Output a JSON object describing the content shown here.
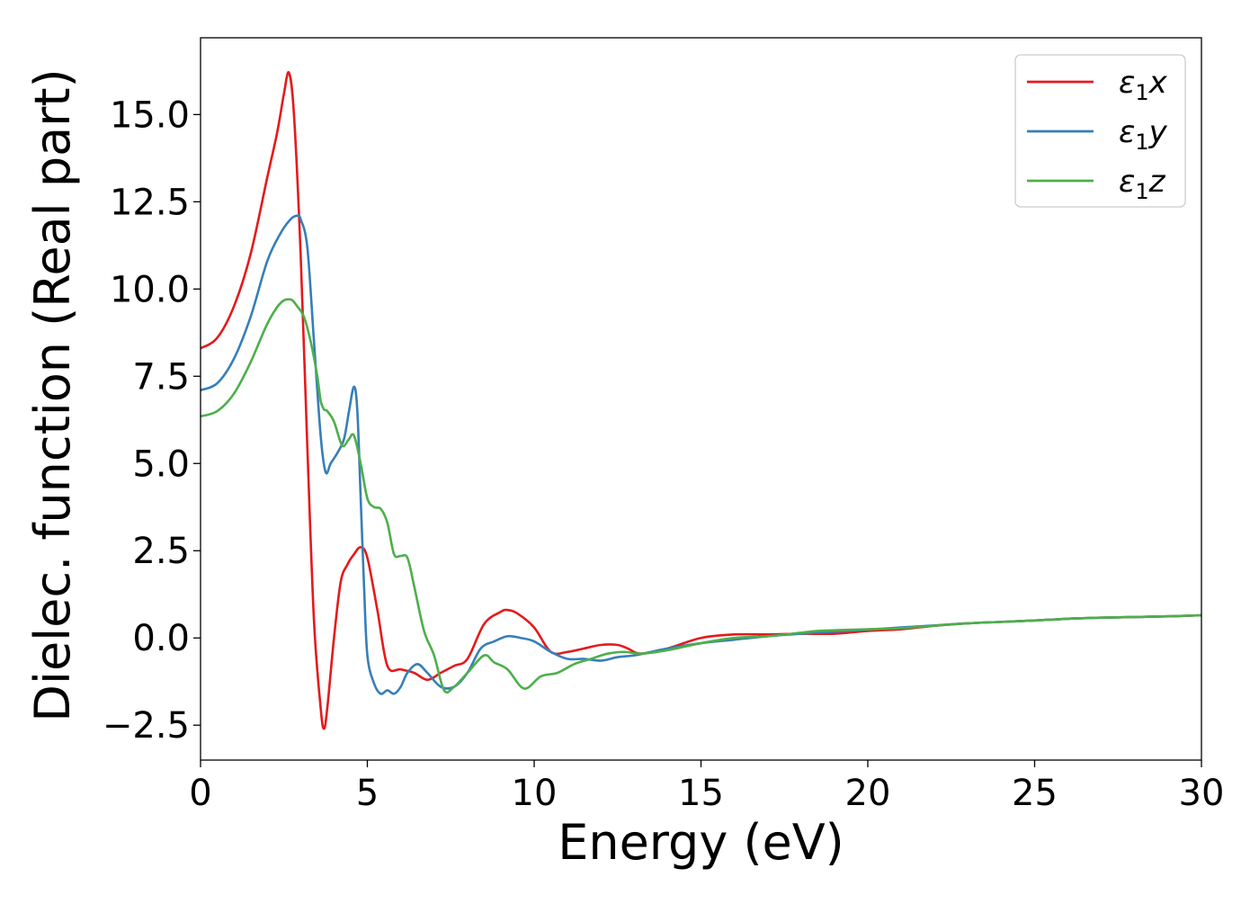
{
  "chart_data": {
    "type": "line",
    "title": "",
    "xlabel": "Energy (eV)",
    "ylabel": "Dielec. function (Real part)",
    "xlim": [
      0,
      30
    ],
    "ylim": [
      -3.5,
      17.2
    ],
    "x_ticks": [
      0,
      5,
      10,
      15,
      20,
      25,
      30
    ],
    "x_tick_labels": [
      "0",
      "5",
      "10",
      "15",
      "20",
      "25",
      "30"
    ],
    "y_ticks": [
      -2.5,
      0.0,
      2.5,
      5.0,
      7.5,
      10.0,
      12.5,
      15.0
    ],
    "y_tick_labels": [
      "−2.5",
      "0.0",
      "2.5",
      "5.0",
      "7.5",
      "10.0",
      "12.5",
      "15.0"
    ],
    "grid": false,
    "legend_position": "top-right",
    "series": [
      {
        "name": "ε1x",
        "legend_main": "ε",
        "legend_sub": "1",
        "legend_tail": "x",
        "color": "#e41a1c",
        "x": [
          0,
          0.5,
          1.0,
          1.5,
          2.0,
          2.3,
          2.5,
          2.65,
          2.8,
          3.0,
          3.2,
          3.4,
          3.6,
          3.7,
          3.8,
          4.0,
          4.2,
          4.4,
          4.6,
          4.8,
          5.0,
          5.3,
          5.6,
          6.0,
          6.4,
          6.8,
          7.2,
          7.6,
          8.0,
          8.5,
          9.0,
          9.2,
          9.5,
          10.0,
          10.5,
          11.0,
          11.5,
          12.0,
          12.5,
          12.8,
          13.2,
          14.0,
          15.0,
          16.0,
          17.0,
          18.0,
          19.0,
          20.0,
          21.0,
          22.0,
          23.0,
          24.0,
          25.0,
          26.0,
          27.0,
          28.0,
          29.0,
          30.0
        ],
        "y": [
          8.3,
          8.6,
          9.5,
          11.0,
          13.2,
          14.5,
          15.6,
          16.2,
          15.0,
          11.0,
          5.5,
          0.5,
          -2.0,
          -2.6,
          -2.0,
          0.0,
          1.6,
          2.1,
          2.4,
          2.6,
          2.3,
          0.8,
          -0.8,
          -0.9,
          -1.0,
          -1.2,
          -1.0,
          -0.8,
          -0.6,
          0.4,
          0.75,
          0.8,
          0.7,
          0.3,
          -0.4,
          -0.4,
          -0.3,
          -0.2,
          -0.2,
          -0.3,
          -0.45,
          -0.3,
          0.0,
          0.1,
          0.1,
          0.12,
          0.12,
          0.2,
          0.25,
          0.35,
          0.42,
          0.46,
          0.5,
          0.55,
          0.58,
          0.6,
          0.62,
          0.65
        ]
      },
      {
        "name": "ε1y",
        "legend_main": "ε",
        "legend_sub": "1",
        "legend_tail": "y",
        "color": "#377eb8",
        "x": [
          0,
          0.5,
          1.0,
          1.5,
          2.0,
          2.4,
          2.7,
          2.9,
          3.0,
          3.2,
          3.4,
          3.6,
          3.75,
          3.9,
          4.1,
          4.3,
          4.45,
          4.6,
          4.7,
          4.8,
          4.9,
          5.0,
          5.2,
          5.4,
          5.6,
          5.8,
          6.0,
          6.2,
          6.5,
          6.8,
          7.2,
          7.6,
          8.0,
          8.4,
          8.8,
          9.2,
          9.6,
          10.0,
          10.5,
          11.0,
          11.5,
          12.0,
          12.5,
          13.0,
          13.5,
          14.0,
          15.0,
          16.0,
          17.0,
          18.0,
          19.0,
          20.0,
          21.0,
          22.0,
          23.0,
          24.0,
          25.0,
          26.0,
          27.0,
          28.0,
          29.0,
          30.0
        ],
        "y": [
          7.1,
          7.3,
          8.0,
          9.2,
          10.8,
          11.6,
          12.0,
          12.1,
          12.0,
          11.2,
          8.5,
          5.8,
          4.75,
          5.0,
          5.3,
          5.7,
          6.5,
          7.2,
          6.5,
          4.0,
          1.5,
          -0.5,
          -1.3,
          -1.6,
          -1.5,
          -1.6,
          -1.4,
          -1.0,
          -0.75,
          -1.0,
          -1.4,
          -1.4,
          -1.0,
          -0.3,
          -0.1,
          0.05,
          0.0,
          -0.1,
          -0.4,
          -0.6,
          -0.6,
          -0.65,
          -0.55,
          -0.5,
          -0.4,
          -0.3,
          -0.15,
          -0.05,
          0.05,
          0.12,
          0.18,
          0.24,
          0.3,
          0.36,
          0.42,
          0.46,
          0.5,
          0.55,
          0.58,
          0.6,
          0.62,
          0.65
        ]
      },
      {
        "name": "ε1z",
        "legend_main": "ε",
        "legend_sub": "1",
        "legend_tail": "z",
        "color": "#4daf4a",
        "x": [
          0,
          0.5,
          1.0,
          1.5,
          2.0,
          2.4,
          2.7,
          2.9,
          3.1,
          3.3,
          3.5,
          3.6,
          3.7,
          3.8,
          4.0,
          4.2,
          4.3,
          4.45,
          4.6,
          4.8,
          5.0,
          5.2,
          5.4,
          5.6,
          5.8,
          6.0,
          6.2,
          6.4,
          6.7,
          7.0,
          7.3,
          7.6,
          8.0,
          8.5,
          8.8,
          9.2,
          9.7,
          10.2,
          10.7,
          11.2,
          11.7,
          12.2,
          12.7,
          13.2,
          14.0,
          15.0,
          16.0,
          17.0,
          18.0,
          18.5,
          19.0,
          20.0,
          21.0,
          22.0,
          23.0,
          24.0,
          25.0,
          26.0,
          27.0,
          28.0,
          29.0,
          30.0
        ],
        "y": [
          6.35,
          6.5,
          7.0,
          7.9,
          9.0,
          9.6,
          9.7,
          9.5,
          9.2,
          8.5,
          7.5,
          6.8,
          6.55,
          6.5,
          6.2,
          5.6,
          5.5,
          5.7,
          5.8,
          5.0,
          4.0,
          3.75,
          3.7,
          3.3,
          2.4,
          2.35,
          2.3,
          1.5,
          0.2,
          -0.5,
          -1.5,
          -1.4,
          -1.0,
          -0.5,
          -0.7,
          -0.9,
          -1.45,
          -1.1,
          -1.0,
          -0.75,
          -0.6,
          -0.45,
          -0.4,
          -0.45,
          -0.35,
          -0.15,
          0.0,
          0.05,
          0.15,
          0.2,
          0.22,
          0.25,
          0.28,
          0.35,
          0.42,
          0.46,
          0.5,
          0.55,
          0.58,
          0.6,
          0.62,
          0.65
        ]
      }
    ]
  }
}
